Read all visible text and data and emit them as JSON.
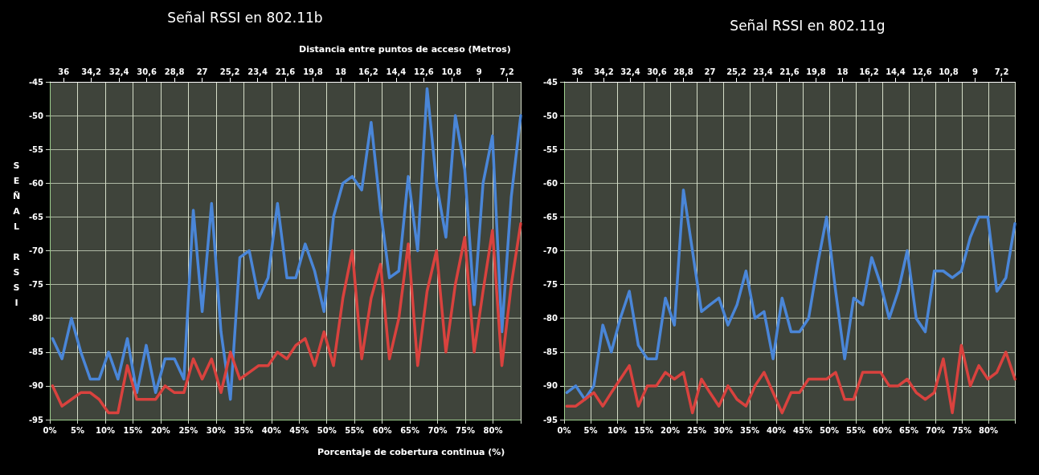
{
  "chart_data": [
    {
      "type": "line",
      "title": "Señal RSSI en 802.11b",
      "x2label": "Distancia entre puntos de acceso (Metros)",
      "xlabel": "Porcentaje de cobertura continua (%)",
      "ylabel": "SEÑAL RSSI",
      "x": [
        0.5,
        2.2,
        3.9,
        5.6,
        7.3,
        8.9,
        10.6,
        12.3,
        14.0,
        15.7,
        17.4,
        19.1,
        20.8,
        22.5,
        24.2,
        25.9,
        27.5,
        29.2,
        30.9,
        32.6,
        34.3,
        36.0,
        37.7,
        39.4,
        41.1,
        42.8,
        44.4,
        46.1,
        47.8,
        49.5,
        51.2,
        52.9,
        54.6,
        56.3,
        58.0,
        59.7,
        61.3,
        63.0,
        64.7,
        66.4,
        68.1,
        69.8,
        71.5,
        73.2,
        74.9,
        76.6,
        78.2,
        79.9,
        81.6,
        83.3,
        85.0
      ],
      "series": [
        {
          "color": "#4a86d8",
          "values": [
            -83,
            -86,
            -80,
            -85,
            -89,
            -89,
            -85,
            -89,
            -83,
            -91,
            -84,
            -91,
            -86,
            -86,
            -89,
            -64,
            -79,
            -63,
            -82,
            -92,
            -71,
            -70,
            -77,
            -74,
            -63,
            -74,
            -74,
            -69,
            -73,
            -79,
            -65,
            -60,
            -59,
            -61,
            -51,
            -64,
            -74,
            -73,
            -59,
            -70,
            -46,
            -60,
            -68,
            -50,
            -58,
            -78,
            -60,
            -53,
            -82,
            -62,
            -50
          ]
        },
        {
          "color": "#d9423e",
          "values": [
            -90,
            -93,
            -92,
            -91,
            -91,
            -92,
            -94,
            -94,
            -87,
            -92,
            -92,
            -92,
            -90,
            -91,
            -91,
            -86,
            -89,
            -86,
            -91,
            -85,
            -89,
            -88,
            -87,
            -87,
            -85,
            -86,
            -84,
            -83,
            -87,
            -82,
            -87,
            -77,
            -70,
            -86,
            -77,
            -72,
            -86,
            -80,
            -69,
            -87,
            -76,
            -70,
            -85,
            -75,
            -68,
            -85,
            -76,
            -67,
            -87,
            -75,
            -66
          ]
        }
      ],
      "xlim": [
        0,
        85
      ],
      "xticks": [
        {
          "value": 0,
          "label": "0%"
        },
        {
          "value": 5,
          "label": "5%"
        },
        {
          "value": 10,
          "label": "10%"
        },
        {
          "value": 15,
          "label": "15%"
        },
        {
          "value": 20,
          "label": "20%"
        },
        {
          "value": 25,
          "label": "25%"
        },
        {
          "value": 30,
          "label": "30%"
        },
        {
          "value": 35,
          "label": "35%"
        },
        {
          "value": 40,
          "label": "40%"
        },
        {
          "value": 45,
          "label": "45%"
        },
        {
          "value": 50,
          "label": "50%"
        },
        {
          "value": 55,
          "label": "55%"
        },
        {
          "value": 60,
          "label": "60%"
        },
        {
          "value": 65,
          "label": "65%"
        },
        {
          "value": 70,
          "label": "70%"
        },
        {
          "value": 75,
          "label": "75%"
        },
        {
          "value": 80,
          "label": "80%"
        },
        {
          "value": 85,
          "label": null
        }
      ],
      "x2lim": [
        36.9,
        6.3
      ],
      "x2ticks": [
        36,
        {
          "value": 34.2,
          "label": "34,2"
        },
        {
          "value": 32.4,
          "label": "32,4"
        },
        {
          "value": 30.6,
          "label": "30,6"
        },
        {
          "value": 28.8,
          "label": "28,8"
        },
        27,
        {
          "value": 25.2,
          "label": "25,2"
        },
        {
          "value": 23.4,
          "label": "23,4"
        },
        {
          "value": 21.6,
          "label": "21,6"
        },
        {
          "value": 19.8,
          "label": "19,8"
        },
        18,
        {
          "value": 16.2,
          "label": "16,2"
        },
        {
          "value": 14.4,
          "label": "14,4"
        },
        {
          "value": 12.6,
          "label": "12,6"
        },
        {
          "value": 10.8,
          "label": "10,8"
        },
        9,
        {
          "value": 7.2,
          "label": "7,2"
        }
      ],
      "ylim": [
        -95,
        -45
      ],
      "yticks": [
        -95,
        -90,
        -85,
        -80,
        -75,
        -70,
        -65,
        -60,
        -55,
        -50,
        -45
      ],
      "grid": true
    },
    {
      "type": "line",
      "title": "Señal RSSI en 802.11g",
      "x": [
        0.5,
        2.2,
        3.9,
        5.6,
        7.3,
        8.9,
        10.6,
        12.3,
        14.0,
        15.7,
        17.4,
        19.1,
        20.8,
        22.5,
        24.2,
        25.9,
        27.5,
        29.2,
        30.9,
        32.6,
        34.3,
        36.0,
        37.7,
        39.4,
        41.1,
        42.8,
        44.4,
        46.1,
        47.8,
        49.5,
        51.2,
        52.9,
        54.6,
        56.3,
        58.0,
        59.7,
        61.3,
        63.0,
        64.7,
        66.4,
        68.1,
        69.8,
        71.5,
        73.2,
        74.9,
        76.6,
        78.2,
        79.9,
        81.6,
        83.3,
        85.0
      ],
      "series": [
        {
          "color": "#4a86d8",
          "values": [
            -91,
            -90,
            -92,
            -90,
            -81,
            -85,
            -80,
            -76,
            -84,
            -86,
            -86,
            -77,
            -81,
            -61,
            -70,
            -79,
            -78,
            -77,
            -81,
            -78,
            -73,
            -80,
            -79,
            -86,
            -77,
            -82,
            -82,
            -80,
            -72,
            -65,
            -76,
            -86,
            -77,
            -78,
            -71,
            -75,
            -80,
            -76,
            -70,
            -80,
            -82,
            -73,
            -73,
            -74,
            -73,
            -68,
            -65,
            -65,
            -76,
            -74,
            -66
          ]
        },
        {
          "color": "#d9423e",
          "values": [
            -93,
            -93,
            -92,
            -91,
            -93,
            -91,
            -89,
            -87,
            -93,
            -90,
            -90,
            -88,
            -89,
            -88,
            -94,
            -89,
            -91,
            -93,
            -90,
            -92,
            -93,
            -90,
            -88,
            -91,
            -94,
            -91,
            -91,
            -89,
            -89,
            -89,
            -88,
            -92,
            -92,
            -88,
            -88,
            -88,
            -90,
            -90,
            -89,
            -91,
            -92,
            -91,
            -86,
            -94,
            -84,
            -90,
            -87,
            -89,
            -88,
            -85,
            -89
          ]
        }
      ],
      "xlim": [
        0,
        85
      ],
      "xticks": [
        {
          "value": 0,
          "label": "0%"
        },
        {
          "value": 5,
          "label": "5%"
        },
        {
          "value": 10,
          "label": "10%"
        },
        {
          "value": 15,
          "label": "15%"
        },
        {
          "value": 20,
          "label": "20%"
        },
        {
          "value": 25,
          "label": "25%"
        },
        {
          "value": 30,
          "label": "30%"
        },
        {
          "value": 35,
          "label": "35%"
        },
        {
          "value": 40,
          "label": "40%"
        },
        {
          "value": 45,
          "label": "45%"
        },
        {
          "value": 50,
          "label": "50%"
        },
        {
          "value": 55,
          "label": "55%"
        },
        {
          "value": 60,
          "label": "60%"
        },
        {
          "value": 65,
          "label": "65%"
        },
        {
          "value": 70,
          "label": "70%"
        },
        {
          "value": 75,
          "label": "75%"
        },
        {
          "value": 80,
          "label": "80%"
        },
        {
          "value": 85,
          "label": null
        }
      ],
      "x2lim": [
        36.9,
        6.3
      ],
      "x2ticks": [
        36,
        {
          "value": 34.2,
          "label": "34,2"
        },
        {
          "value": 32.4,
          "label": "32,4"
        },
        {
          "value": 30.6,
          "label": "30,6"
        },
        {
          "value": 28.8,
          "label": "28,8"
        },
        27,
        {
          "value": 25.2,
          "label": "25,2"
        },
        {
          "value": 23.4,
          "label": "23,4"
        },
        {
          "value": 21.6,
          "label": "21,6"
        },
        {
          "value": 19.8,
          "label": "19,8"
        },
        18,
        {
          "value": 16.2,
          "label": "16,2"
        },
        {
          "value": 14.4,
          "label": "14,4"
        },
        {
          "value": 12.6,
          "label": "12,6"
        },
        {
          "value": 10.8,
          "label": "10,8"
        },
        9,
        {
          "value": 7.2,
          "label": "7,2"
        }
      ],
      "ylim": [
        -95,
        -45
      ],
      "yticks": [
        -95,
        -90,
        -85,
        -80,
        -75,
        -70,
        -65,
        -60,
        -55,
        -50,
        -45
      ],
      "grid": true
    }
  ]
}
